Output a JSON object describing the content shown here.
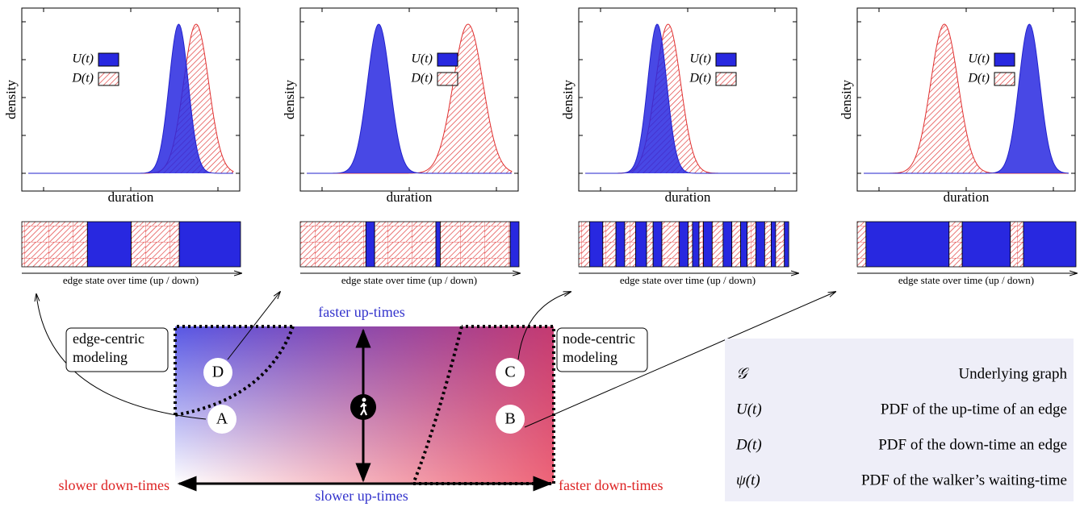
{
  "panels": [
    {
      "y_label": "density",
      "x_label": "duration",
      "legend": [
        "U(t)",
        "D(t)"
      ],
      "timeline_label": "edge state over time (up / down)"
    },
    {
      "y_label": "density",
      "x_label": "duration",
      "legend": [
        "U(t)",
        "D(t)"
      ],
      "timeline_label": "edge state over time (up / down)"
    },
    {
      "y_label": "density",
      "x_label": "duration",
      "legend": [
        "U(t)",
        "D(t)"
      ],
      "timeline_label": "edge state over time (up / down)"
    },
    {
      "y_label": "density",
      "x_label": "duration",
      "legend": [
        "U(t)",
        "D(t)"
      ],
      "timeline_label": "edge state over time (up / down)"
    }
  ],
  "map": {
    "top_label": "faster up-times",
    "bottom_label": "slower up-times",
    "left_label": "slower down-times",
    "right_label": "faster down-times",
    "edge_centric": [
      "edge-centric",
      "modeling"
    ],
    "node_centric": [
      "node-centric",
      "modeling"
    ],
    "points": [
      "A",
      "B",
      "C",
      "D"
    ]
  },
  "legend_table": {
    "rows": [
      [
        "𝒢",
        "Underlying graph"
      ],
      [
        "U(t)",
        "PDF of the up-time of an edge"
      ],
      [
        "D(t)",
        "PDF of the down-time an edge"
      ],
      [
        "ψ(t)",
        "PDF of the walker’s waiting-time"
      ]
    ]
  }
}
